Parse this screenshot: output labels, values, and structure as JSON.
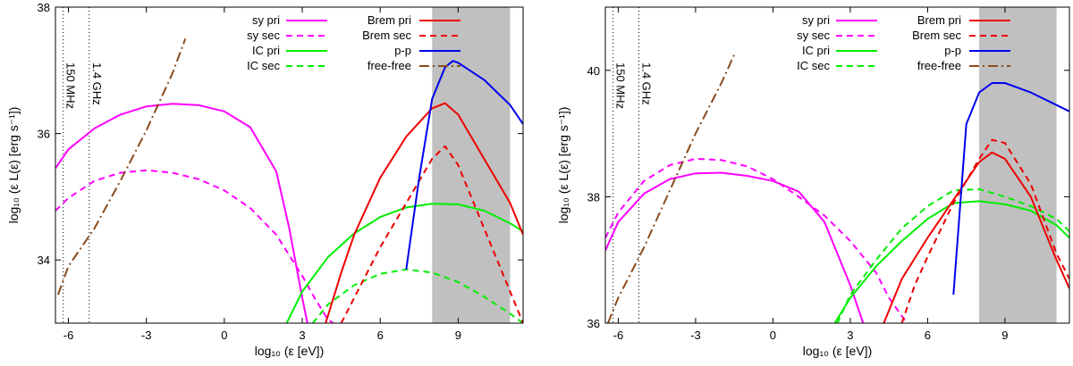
{
  "chart_data": [
    {
      "type": "line",
      "xlabel": "log₁₀ (ε [eV])",
      "ylabel": "log₁₀ (ε L(ε) [erg s⁻¹])",
      "xlim": [
        -6.5,
        11.5
      ],
      "ylim": [
        33,
        38
      ],
      "xticks": [
        -6,
        -3,
        0,
        3,
        6,
        9
      ],
      "yticks": [
        34,
        36,
        38
      ],
      "shaded_band": [
        8,
        11
      ],
      "vlines": [
        {
          "x": -6.2,
          "label": "150 MHz"
        },
        {
          "x": -5.2,
          "label": "1.4 GHz"
        }
      ],
      "legend_position": "top-center",
      "series": [
        {
          "name": "sy pri",
          "color": "#ff00ff",
          "dash": "solid",
          "x": [
            -6.5,
            -6,
            -5,
            -4,
            -3,
            -2,
            -1,
            0,
            1,
            2,
            2.5,
            3,
            3.2
          ],
          "y": [
            35.45,
            35.75,
            36.08,
            36.3,
            36.43,
            36.47,
            36.45,
            36.35,
            36.1,
            35.4,
            34.5,
            33.4,
            33.0
          ]
        },
        {
          "name": "sy sec",
          "color": "#ff00ff",
          "dash": "dashed",
          "x": [
            -6.5,
            -6,
            -5,
            -4,
            -3,
            -2,
            -1,
            0,
            1,
            2,
            3,
            3.5,
            4,
            4.2
          ],
          "y": [
            34.78,
            34.98,
            35.25,
            35.38,
            35.42,
            35.38,
            35.28,
            35.1,
            34.82,
            34.4,
            33.75,
            33.38,
            33.05,
            33.0
          ]
        },
        {
          "name": "IC pri",
          "color": "#00ee00",
          "dash": "solid",
          "x": [
            2.4,
            3,
            4,
            5,
            6,
            7,
            8,
            9,
            10,
            11,
            11.5
          ],
          "y": [
            33.0,
            33.5,
            34.05,
            34.42,
            34.68,
            34.83,
            34.89,
            34.88,
            34.78,
            34.58,
            34.45
          ]
        },
        {
          "name": "IC sec",
          "color": "#00ee00",
          "dash": "dashed",
          "x": [
            3.4,
            4,
            5,
            6,
            7,
            8,
            9,
            10,
            11,
            11.5
          ],
          "y": [
            33.0,
            33.3,
            33.6,
            33.78,
            33.85,
            33.8,
            33.65,
            33.42,
            33.15,
            33.0
          ]
        },
        {
          "name": "Brem pri",
          "color": "#ee0000",
          "dash": "solid",
          "x": [
            3.9,
            4.5,
            5,
            6,
            7,
            8,
            8.5,
            9,
            10,
            11,
            11.5
          ],
          "y": [
            33.0,
            33.8,
            34.4,
            35.3,
            35.95,
            36.4,
            36.48,
            36.3,
            35.6,
            34.9,
            34.4
          ]
        },
        {
          "name": "Brem sec",
          "color": "#ee0000",
          "dash": "dashed",
          "x": [
            4.5,
            5,
            6,
            7,
            8,
            8.5,
            9,
            10,
            11,
            11.5
          ],
          "y": [
            33.0,
            33.4,
            34.2,
            34.9,
            35.6,
            35.8,
            35.5,
            34.5,
            33.5,
            33.0
          ]
        },
        {
          "name": "p-p",
          "color": "#0000ee",
          "dash": "solid",
          "x": [
            7,
            7.5,
            8,
            8.5,
            8.8,
            9,
            10,
            11,
            11.5
          ],
          "y": [
            33.85,
            35.3,
            36.55,
            37.05,
            37.15,
            37.12,
            36.85,
            36.45,
            36.15
          ]
        },
        {
          "name": "free-free",
          "color": "#8b4a1c",
          "dash": "dashdot",
          "x": [
            -6.4,
            -6,
            -5,
            -4,
            -3,
            -2,
            -1.5
          ],
          "y": [
            33.45,
            33.9,
            34.5,
            35.25,
            36.05,
            36.95,
            37.5
          ]
        }
      ]
    },
    {
      "type": "line",
      "xlabel": "log₁₀ (ε [eV])",
      "ylabel": "log₁₀ (ε L(ε) [erg s⁻¹])",
      "xlim": [
        -6.5,
        11.5
      ],
      "ylim": [
        36,
        41
      ],
      "xticks": [
        -6,
        -3,
        0,
        3,
        6,
        9
      ],
      "yticks": [
        36,
        38,
        40
      ],
      "shaded_band": [
        8,
        11
      ],
      "vlines": [
        {
          "x": -6.2,
          "label": "150 MHz"
        },
        {
          "x": -5.2,
          "label": "1.4 GHz"
        }
      ],
      "legend_position": "top-center",
      "series": [
        {
          "name": "sy pri",
          "color": "#ff00ff",
          "dash": "solid",
          "x": [
            -6.5,
            -6,
            -5,
            -4,
            -3,
            -2,
            -1,
            0,
            1,
            2,
            2.5,
            3,
            3.5
          ],
          "y": [
            37.15,
            37.6,
            38.05,
            38.28,
            38.37,
            38.38,
            38.33,
            38.25,
            38.08,
            37.6,
            37.1,
            36.6,
            36.0
          ]
        },
        {
          "name": "sy sec",
          "color": "#ff00ff",
          "dash": "dashed",
          "x": [
            -6.5,
            -6,
            -5,
            -4,
            -3,
            -2,
            -1,
            0,
            1,
            2,
            3,
            4,
            4.5,
            5.2
          ],
          "y": [
            37.35,
            37.75,
            38.25,
            38.5,
            38.6,
            38.58,
            38.48,
            38.28,
            38.0,
            37.7,
            37.3,
            36.8,
            36.4,
            36.0
          ]
        },
        {
          "name": "IC pri",
          "color": "#00ee00",
          "dash": "solid",
          "x": [
            2.4,
            3,
            4,
            5,
            6,
            7,
            8,
            9,
            10,
            11,
            11.5
          ],
          "y": [
            36.0,
            36.4,
            36.9,
            37.3,
            37.65,
            37.9,
            37.93,
            37.88,
            37.78,
            37.55,
            37.35
          ]
        },
        {
          "name": "IC sec",
          "color": "#00ee00",
          "dash": "dashed",
          "x": [
            2.5,
            3,
            4,
            5,
            6,
            7,
            8,
            9,
            10,
            11,
            11.5
          ],
          "y": [
            36.0,
            36.45,
            37.0,
            37.5,
            37.85,
            38.1,
            38.12,
            38.0,
            37.85,
            37.65,
            37.45
          ]
        },
        {
          "name": "Brem pri",
          "color": "#ee0000",
          "dash": "solid",
          "x": [
            4.3,
            5,
            6,
            7,
            8,
            8.5,
            9,
            10,
            11,
            11.5
          ],
          "y": [
            36.0,
            36.7,
            37.35,
            37.95,
            38.55,
            38.7,
            38.6,
            38.0,
            37.0,
            36.55
          ]
        },
        {
          "name": "Brem sec",
          "color": "#ee0000",
          "dash": "dashed",
          "x": [
            5.0,
            5.5,
            6,
            7,
            8,
            8.5,
            9,
            10,
            11,
            11.5
          ],
          "y": [
            36.0,
            36.6,
            37.05,
            37.9,
            38.6,
            38.9,
            38.85,
            38.2,
            37.1,
            36.7
          ]
        },
        {
          "name": "p-p",
          "color": "#0000ee",
          "dash": "solid",
          "x": [
            7,
            7.5,
            8,
            8.5,
            9,
            10,
            11,
            11.5
          ],
          "y": [
            36.45,
            39.15,
            39.65,
            39.8,
            39.8,
            39.65,
            39.45,
            39.35
          ]
        },
        {
          "name": "free-free",
          "color": "#8b4a1c",
          "dash": "dashdot",
          "x": [
            -6.4,
            -6,
            -5,
            -4,
            -3,
            -2,
            -1.5
          ],
          "y": [
            36.0,
            36.4,
            37.2,
            38.1,
            39.0,
            39.8,
            40.25
          ]
        }
      ]
    }
  ]
}
